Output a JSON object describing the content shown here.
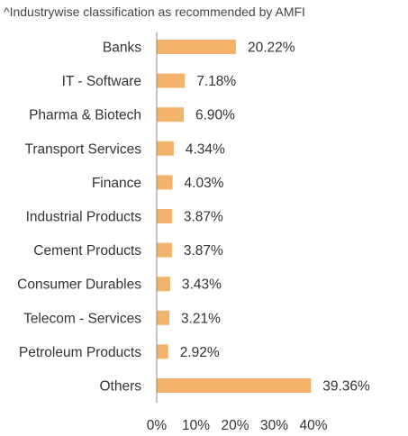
{
  "note": "^Industrywise classification as recommended by AMFI",
  "colors": {
    "bar": "#F4B36A",
    "axis": "#888888"
  },
  "chart_data": {
    "type": "bar",
    "orientation": "horizontal",
    "categories": [
      "Banks",
      "IT - Software",
      "Pharma & Biotech",
      "Transport Services",
      "Finance",
      "Industrial Products",
      "Cement Products",
      "Consumer Durables",
      "Telecom - Services",
      "Petroleum Products",
      "Others"
    ],
    "values": [
      20.22,
      7.18,
      6.9,
      4.34,
      4.03,
      3.87,
      3.87,
      3.43,
      3.21,
      2.92,
      39.36
    ],
    "value_labels": [
      "20.22%",
      "7.18%",
      "6.90%",
      "4.34%",
      "4.03%",
      "3.87%",
      "3.87%",
      "3.43%",
      "3.21%",
      "2.92%",
      "39.36%"
    ],
    "xlim": [
      0,
      40
    ],
    "xticks": [
      0,
      10,
      20,
      30,
      40
    ],
    "xtick_labels": [
      "0%",
      "10%",
      "20%",
      "30%",
      "40%"
    ],
    "grid": false,
    "legend": "none"
  }
}
